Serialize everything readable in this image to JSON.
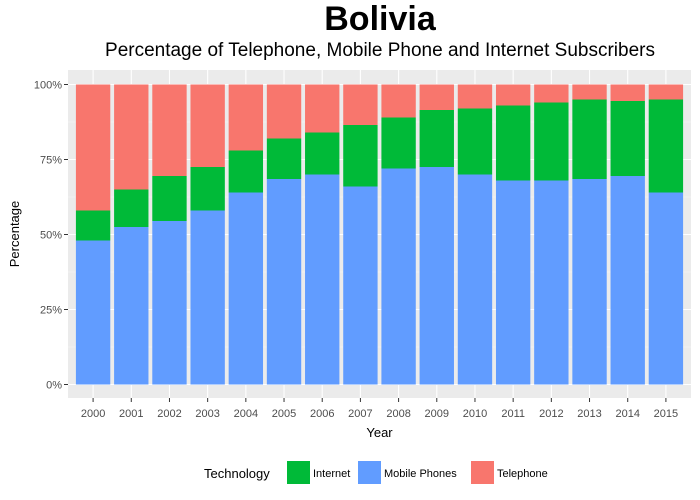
{
  "chart_data": {
    "type": "bar",
    "stacked": true,
    "title": "Bolivia",
    "subtitle": "Percentage of Telephone, Mobile Phone and Internet Subscribers",
    "xlabel": "Year",
    "ylabel": "Percentage",
    "ylim": [
      0,
      100
    ],
    "yticks": [
      "0%",
      "25%",
      "50%",
      "75%",
      "100%"
    ],
    "ytick_values": [
      0,
      25,
      50,
      75,
      100
    ],
    "categories": [
      "2000",
      "2001",
      "2002",
      "2003",
      "2004",
      "2005",
      "2006",
      "2007",
      "2008",
      "2009",
      "2010",
      "2011",
      "2012",
      "2013",
      "2014",
      "2015"
    ],
    "series": [
      {
        "name": "Mobile Phones",
        "color": "#619CFF",
        "values": [
          48,
          52.5,
          54.5,
          58,
          64,
          68.5,
          70,
          66,
          72,
          72.5,
          70,
          68,
          68,
          68.5,
          69.5,
          64
        ]
      },
      {
        "name": "Internet",
        "color": "#00BA38",
        "values": [
          10,
          12.5,
          15,
          14.5,
          14,
          13.5,
          14,
          20.5,
          17,
          19,
          22,
          25,
          26,
          26.5,
          25,
          31
        ]
      },
      {
        "name": "Telephone",
        "color": "#F8766D",
        "values": [
          42,
          35,
          30.5,
          27.5,
          22,
          18,
          16,
          13.5,
          11,
          8.5,
          8,
          7,
          6,
          5,
          5.5,
          5
        ]
      }
    ],
    "legend": {
      "title": "Technology",
      "position": "bottom",
      "items": [
        {
          "label": "Internet",
          "color": "#00BA38"
        },
        {
          "label": "Mobile Phones",
          "color": "#619CFF"
        },
        {
          "label": "Telephone",
          "color": "#F8766D"
        }
      ]
    },
    "grid": true,
    "panel_background": "#EBEBEB"
  }
}
